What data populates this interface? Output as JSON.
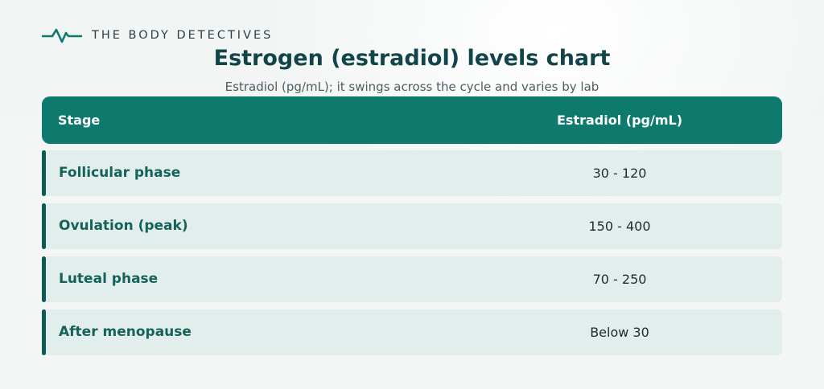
{
  "brand": {
    "name": "THE BODY DETECTIVES",
    "icon": "heartbeat-line-icon",
    "color": "#0e7a6e"
  },
  "title": "Estrogen (estradiol) levels chart",
  "subtitle": "Estradiol (pg/mL); it swings across the cycle and varies by lab",
  "table": {
    "headers": {
      "stage": "Stage",
      "value": "Estradiol (pg/mL)"
    },
    "rows": [
      {
        "stage": "Follicular phase",
        "value": "30 - 120"
      },
      {
        "stage": "Ovulation (peak)",
        "value": "150 - 400"
      },
      {
        "stage": "Luteal phase",
        "value": "70 - 250"
      },
      {
        "stage": "After menopause",
        "value": "Below 30"
      }
    ]
  },
  "colors": {
    "header_bg": "#0e7a6e",
    "row_bg": "#e2eeeb",
    "row_accent": "#0c5a55",
    "title": "#124549",
    "stage_text": "#15625b"
  }
}
